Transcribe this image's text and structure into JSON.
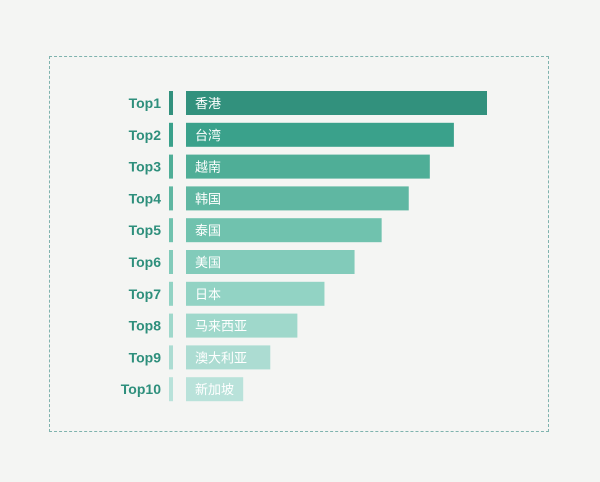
{
  "chart_data": {
    "type": "bar",
    "orientation": "horizontal",
    "ranks": [
      "Top1",
      "Top2",
      "Top3",
      "Top4",
      "Top5",
      "Top6",
      "Top7",
      "Top8",
      "Top9",
      "Top10"
    ],
    "categories": [
      "香港",
      "台湾",
      "越南",
      "韩国",
      "泰国",
      "美国",
      "日本",
      "马来西亚",
      "澳大利亚",
      "新加坡"
    ],
    "values": [
      100,
      89,
      81,
      74,
      65,
      56,
      46,
      37,
      28,
      19
    ],
    "xlim": [
      0,
      100
    ],
    "grid": false,
    "legend": "none",
    "colors": [
      "#32917d",
      "#3aa18b",
      "#4fae97",
      "#5fb7a2",
      "#70c2ae",
      "#82cbba",
      "#92d3c4",
      "#9fd8cb",
      "#acdcd2",
      "#b9e2da"
    ],
    "rank_text_color": "#2e8f7c"
  }
}
